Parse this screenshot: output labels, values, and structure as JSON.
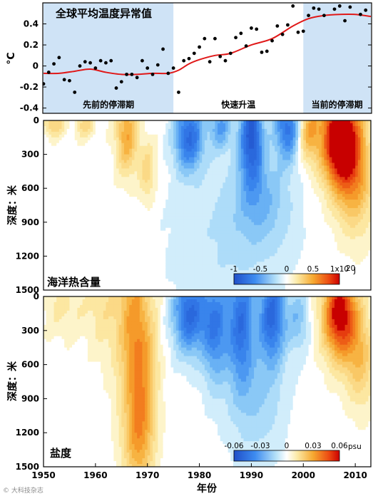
{
  "chart_data": [
    {
      "type": "scatter",
      "title": "全球平均温度异常值",
      "ylabel": "°C",
      "ylim": [
        -0.45,
        0.6
      ],
      "xlim": [
        1950,
        2013
      ],
      "yticks": [
        "0.4",
        "0.2",
        "0",
        "-0.2",
        "-0.4"
      ],
      "periods": [
        {
          "label": "先前的停滞期",
          "start": 1950,
          "end": 1975,
          "shaded": true
        },
        {
          "label": "快速升温",
          "start": 1975,
          "end": 2000,
          "shaded": false
        },
        {
          "label": "当前的停滞期",
          "start": 2000,
          "end": 2013,
          "shaded": true
        }
      ],
      "points": [
        [
          1950,
          -0.17
        ],
        [
          1951,
          -0.06
        ],
        [
          1952,
          0.02
        ],
        [
          1953,
          0.08
        ],
        [
          1954,
          -0.13
        ],
        [
          1955,
          -0.14
        ],
        [
          1956,
          -0.25
        ],
        [
          1957,
          0.0
        ],
        [
          1958,
          0.04
        ],
        [
          1959,
          0.03
        ],
        [
          1960,
          -0.02
        ],
        [
          1961,
          0.05
        ],
        [
          1962,
          0.03
        ],
        [
          1963,
          0.05
        ],
        [
          1964,
          -0.21
        ],
        [
          1965,
          -0.15
        ],
        [
          1966,
          -0.08
        ],
        [
          1967,
          -0.08
        ],
        [
          1968,
          -0.11
        ],
        [
          1969,
          0.05
        ],
        [
          1970,
          -0.02
        ],
        [
          1971,
          -0.08
        ],
        [
          1972,
          0.01
        ],
        [
          1973,
          0.16
        ],
        [
          1974,
          -0.07
        ],
        [
          1975,
          -0.02
        ],
        [
          1976,
          -0.25
        ],
        [
          1977,
          0.05
        ],
        [
          1978,
          0.07
        ],
        [
          1979,
          0.12
        ],
        [
          1980,
          0.18
        ],
        [
          1981,
          0.26
        ],
        [
          1982,
          0.04
        ],
        [
          1983,
          0.26
        ],
        [
          1984,
          0.09
        ],
        [
          1985,
          0.05
        ],
        [
          1986,
          0.12
        ],
        [
          1987,
          0.27
        ],
        [
          1988,
          0.31
        ],
        [
          1989,
          0.19
        ],
        [
          1990,
          0.36
        ],
        [
          1991,
          0.35
        ],
        [
          1992,
          0.13
        ],
        [
          1993,
          0.14
        ],
        [
          1994,
          0.24
        ],
        [
          1995,
          0.38
        ],
        [
          1996,
          0.3
        ],
        [
          1997,
          0.39
        ],
        [
          1998,
          0.57
        ],
        [
          1999,
          0.32
        ],
        [
          2000,
          0.33
        ],
        [
          2001,
          0.48
        ],
        [
          2002,
          0.55
        ],
        [
          2003,
          0.54
        ],
        [
          2004,
          0.48
        ],
        [
          2005,
          0.62
        ],
        [
          2006,
          0.54
        ],
        [
          2007,
          0.57
        ],
        [
          2008,
          0.43
        ],
        [
          2009,
          0.56
        ],
        [
          2010,
          0.62
        ],
        [
          2011,
          0.49
        ],
        [
          2012,
          0.53
        ]
      ],
      "smooth": [
        [
          1950,
          -0.07
        ],
        [
          1953,
          -0.07
        ],
        [
          1956,
          -0.05
        ],
        [
          1959,
          -0.03
        ],
        [
          1962,
          -0.06
        ],
        [
          1965,
          -0.08
        ],
        [
          1968,
          -0.08
        ],
        [
          1971,
          -0.07
        ],
        [
          1974,
          -0.07
        ],
        [
          1976,
          -0.04
        ],
        [
          1978,
          0.02
        ],
        [
          1980,
          0.06
        ],
        [
          1983,
          0.1
        ],
        [
          1986,
          0.12
        ],
        [
          1990,
          0.2
        ],
        [
          1994,
          0.26
        ],
        [
          1998,
          0.38
        ],
        [
          2001,
          0.45
        ],
        [
          2004,
          0.48
        ],
        [
          2007,
          0.49
        ],
        [
          2010,
          0.49
        ],
        [
          2013,
          0.47
        ]
      ]
    },
    {
      "type": "heatmap",
      "title": "海洋热含量",
      "ylabel": "深度：米",
      "ylim": [
        1500,
        0
      ],
      "yticks": [
        "0",
        "300",
        "600",
        "900",
        "1200",
        "1500"
      ],
      "colorbar": {
        "ticks": [
          "-1",
          "-0.5",
          "0",
          "0.5",
          "1x10"
        ],
        "unit_sup": "20",
        "unit": "J"
      },
      "anomaly_blobs": [
        {
          "year": 1952,
          "depth": 30,
          "amp": 0.35,
          "sx": 1.5,
          "sy": 80
        },
        {
          "year": 1958,
          "depth": 40,
          "amp": 0.3,
          "sx": 1.3,
          "sy": 90
        },
        {
          "year": 1966,
          "depth": 120,
          "amp": 0.55,
          "sx": 1.5,
          "sy": 250
        },
        {
          "year": 1970,
          "depth": 450,
          "amp": 0.3,
          "sx": 1.2,
          "sy": 200
        },
        {
          "year": 1978,
          "depth": 140,
          "amp": -0.75,
          "sx": 2.0,
          "sy": 220
        },
        {
          "year": 1984,
          "depth": 50,
          "amp": -0.45,
          "sx": 1.5,
          "sy": 150
        },
        {
          "year": 1990,
          "depth": 120,
          "amp": -0.85,
          "sx": 1.6,
          "sy": 300
        },
        {
          "year": 1992,
          "depth": 700,
          "amp": -0.3,
          "sx": 4.0,
          "sy": 300
        },
        {
          "year": 1997,
          "depth": 60,
          "amp": -0.7,
          "sx": 1.7,
          "sy": 200
        },
        {
          "year": 2001,
          "depth": 80,
          "amp": 0.5,
          "sx": 1.5,
          "sy": 200
        },
        {
          "year": 2007,
          "depth": 150,
          "amp": 1.3,
          "sx": 2.5,
          "sy": 300
        },
        {
          "year": 2010,
          "depth": 500,
          "amp": 0.5,
          "sx": 2.5,
          "sy": 350
        },
        {
          "year": 1985,
          "depth": 1100,
          "amp": -0.15,
          "sx": 8.0,
          "sy": 500
        }
      ]
    },
    {
      "type": "heatmap",
      "title": "盐度",
      "ylabel": "深度：米",
      "xlabel": "年份",
      "ylim": [
        1500,
        0
      ],
      "xticks": [
        "1950",
        "1960",
        "1970",
        "1980",
        "1990",
        "2000",
        "2010"
      ],
      "yticks": [
        "0",
        "300",
        "600",
        "900",
        "1200",
        "1500"
      ],
      "colorbar": {
        "ticks": [
          "-0.06",
          "-0.03",
          "0",
          "0.03",
          "0.06"
        ],
        "unit": "psu"
      },
      "anomaly_blobs": [
        {
          "year": 1954,
          "depth": 80,
          "amp": 0.012,
          "sx": 3.0,
          "sy": 200
        },
        {
          "year": 1961,
          "depth": 100,
          "amp": 0.012,
          "sx": 2.0,
          "sy": 300
        },
        {
          "year": 1967,
          "depth": 150,
          "amp": 0.03,
          "sx": 2.5,
          "sy": 600
        },
        {
          "year": 1969,
          "depth": 800,
          "amp": 0.028,
          "sx": 2.0,
          "sy": 500
        },
        {
          "year": 1968,
          "depth": 1300,
          "amp": 0.02,
          "sx": 2.0,
          "sy": 300
        },
        {
          "year": 1978,
          "depth": 150,
          "amp": -0.05,
          "sx": 2.2,
          "sy": 250
        },
        {
          "year": 1983,
          "depth": 250,
          "amp": -0.04,
          "sx": 1.8,
          "sy": 350
        },
        {
          "year": 1988,
          "depth": 200,
          "amp": -0.045,
          "sx": 1.8,
          "sy": 400
        },
        {
          "year": 1994,
          "depth": 150,
          "amp": -0.05,
          "sx": 1.8,
          "sy": 300
        },
        {
          "year": 1991,
          "depth": 900,
          "amp": -0.015,
          "sx": 4.0,
          "sy": 400
        },
        {
          "year": 1999,
          "depth": 200,
          "amp": -0.02,
          "sx": 1.5,
          "sy": 200
        },
        {
          "year": 2007,
          "depth": 150,
          "amp": 0.07,
          "sx": 2.3,
          "sy": 280
        },
        {
          "year": 2011,
          "depth": 550,
          "amp": 0.025,
          "sx": 2.0,
          "sy": 300
        }
      ]
    }
  ],
  "watermark": "© 大科技杂志"
}
